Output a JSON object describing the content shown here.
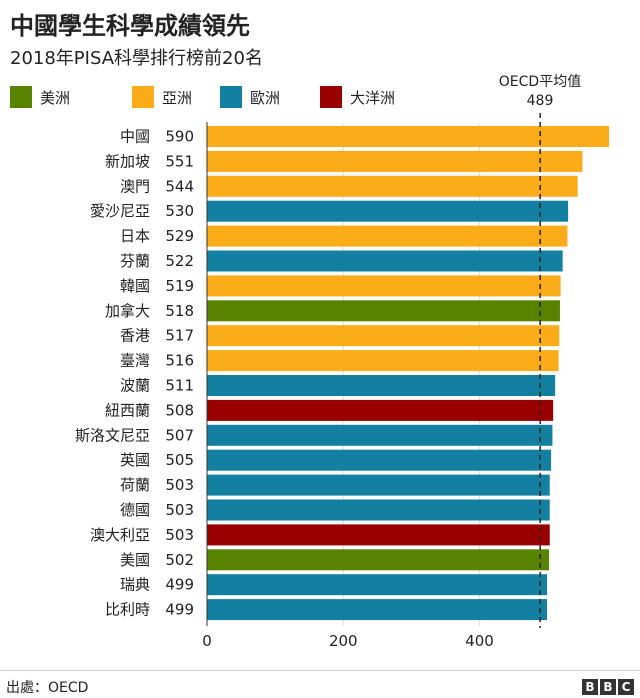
{
  "title": "中國學生科學成績領先",
  "subtitle": "2018年PISA科學排行榜前20名",
  "source": "出處：OECD",
  "brand": [
    "B",
    "B",
    "C"
  ],
  "legend": [
    {
      "label": "美洲",
      "color": "#588300"
    },
    {
      "label": "亞洲",
      "color": "#FAAB18"
    },
    {
      "label": "歐洲",
      "color": "#1380A1"
    },
    {
      "label": "大洋洲",
      "color": "#990000"
    }
  ],
  "reference": {
    "label": "OECD平均值",
    "value_label": "489",
    "value": 489
  },
  "chart_data": {
    "type": "bar",
    "orientation": "horizontal",
    "categories": [
      "中國",
      "新加坡",
      "澳門",
      "愛沙尼亞",
      "日本",
      "芬蘭",
      "韓國",
      "加拿大",
      "香港",
      "臺灣",
      "波蘭",
      "紐西蘭",
      "斯洛文尼亞",
      "英國",
      "荷蘭",
      "德國",
      "澳大利亞",
      "美國",
      "瑞典",
      "比利時"
    ],
    "values": [
      590,
      551,
      544,
      530,
      529,
      522,
      519,
      518,
      517,
      516,
      511,
      508,
      507,
      505,
      503,
      503,
      503,
      502,
      499,
      499
    ],
    "regions": [
      "亞洲",
      "亞洲",
      "亞洲",
      "歐洲",
      "亞洲",
      "歐洲",
      "亞洲",
      "美洲",
      "亞洲",
      "亞洲",
      "歐洲",
      "大洋洲",
      "歐洲",
      "歐洲",
      "歐洲",
      "歐洲",
      "大洋洲",
      "美洲",
      "歐洲",
      "歐洲"
    ],
    "xticks": [
      0,
      200,
      400
    ],
    "xlim": [
      0,
      590
    ],
    "grid": true,
    "legend_position": "top-left"
  }
}
